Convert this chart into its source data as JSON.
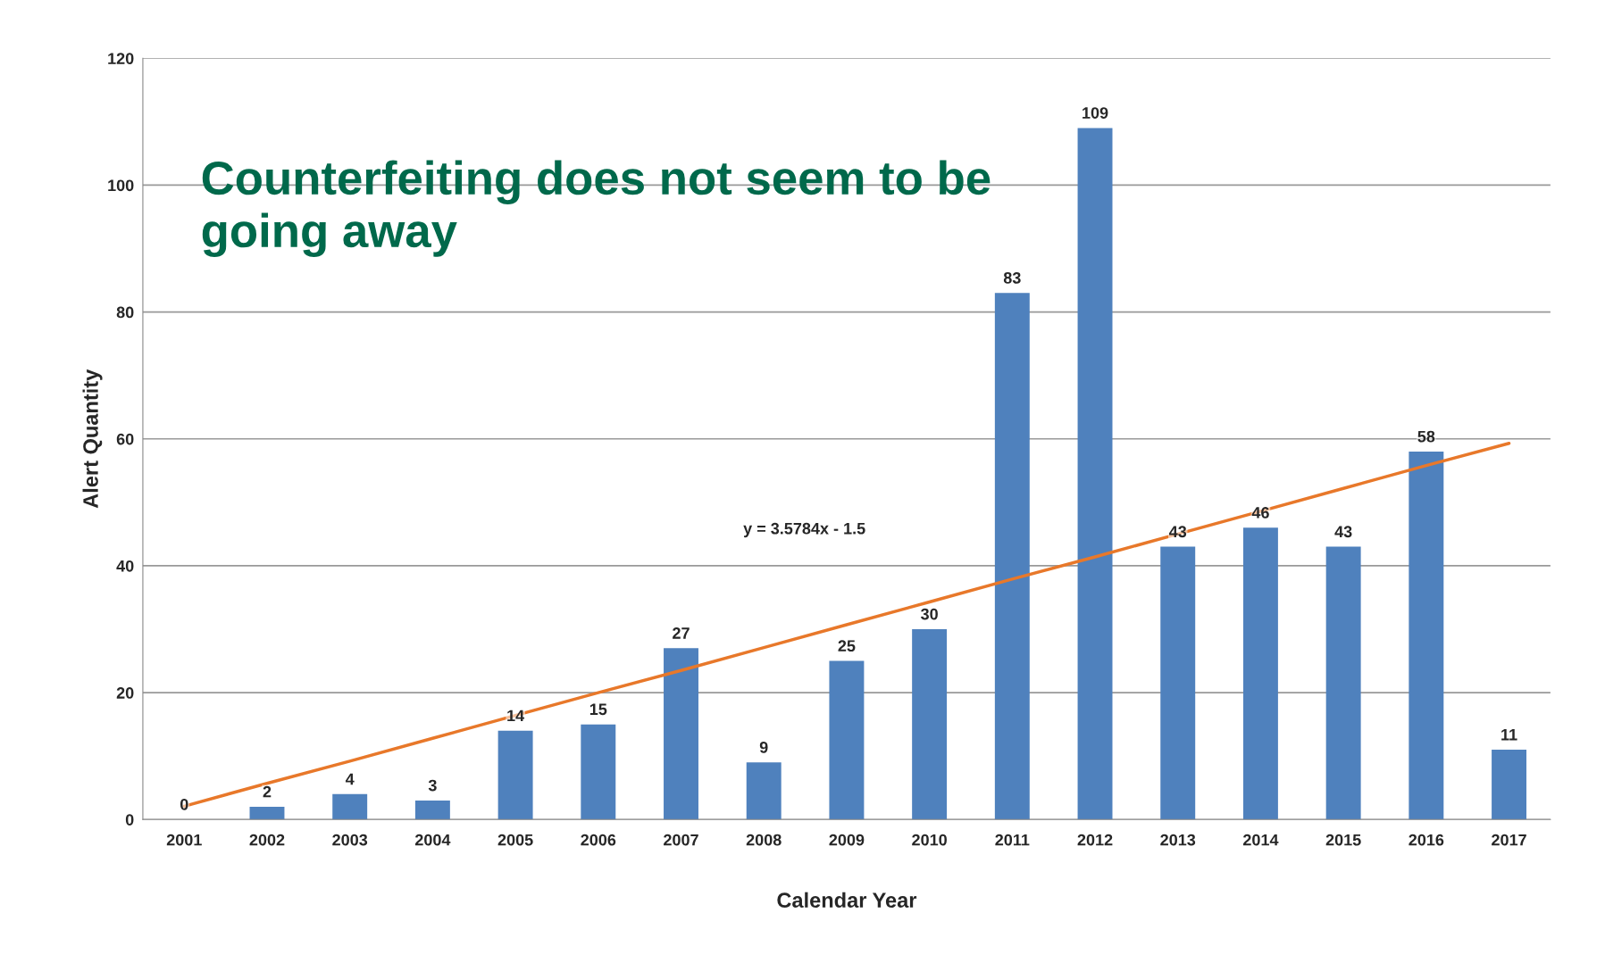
{
  "chart_data": {
    "type": "bar",
    "title": "Counterfeiting does not seem to be going away",
    "xlabel": "Calendar Year",
    "ylabel": "Alert Quantity",
    "categories": [
      "2001",
      "2002",
      "2003",
      "2004",
      "2005",
      "2006",
      "2007",
      "2008",
      "2009",
      "2010",
      "2011",
      "2012",
      "2013",
      "2014",
      "2015",
      "2016",
      "2017"
    ],
    "series": [
      {
        "color": "#4f81bd",
        "values": [
          0,
          2,
          4,
          3,
          14,
          15,
          27,
          9,
          25,
          30,
          83,
          109,
          43,
          46,
          43,
          58,
          11
        ],
        "value_labels": [
          "0",
          "2",
          "4",
          "3",
          "14",
          "15",
          "27",
          "9",
          "25",
          "30",
          "83",
          "109",
          "43",
          "46",
          "43",
          "58",
          "11"
        ]
      },
      {
        "type": "line",
        "color": "#e8782a",
        "values": [
          2.1,
          5.7,
          9.2,
          12.8,
          16.4,
          20.0,
          23.5,
          27.1,
          30.7,
          34.3,
          37.9,
          41.4,
          45.0,
          48.6,
          52.2,
          55.8,
          59.3
        ]
      }
    ],
    "ylim": [
      0,
      120
    ],
    "yticks": [
      0,
      20,
      40,
      60,
      80,
      100,
      120
    ],
    "grid": "y",
    "annotations": [
      "y = 3.5784x - 1.5"
    ]
  }
}
